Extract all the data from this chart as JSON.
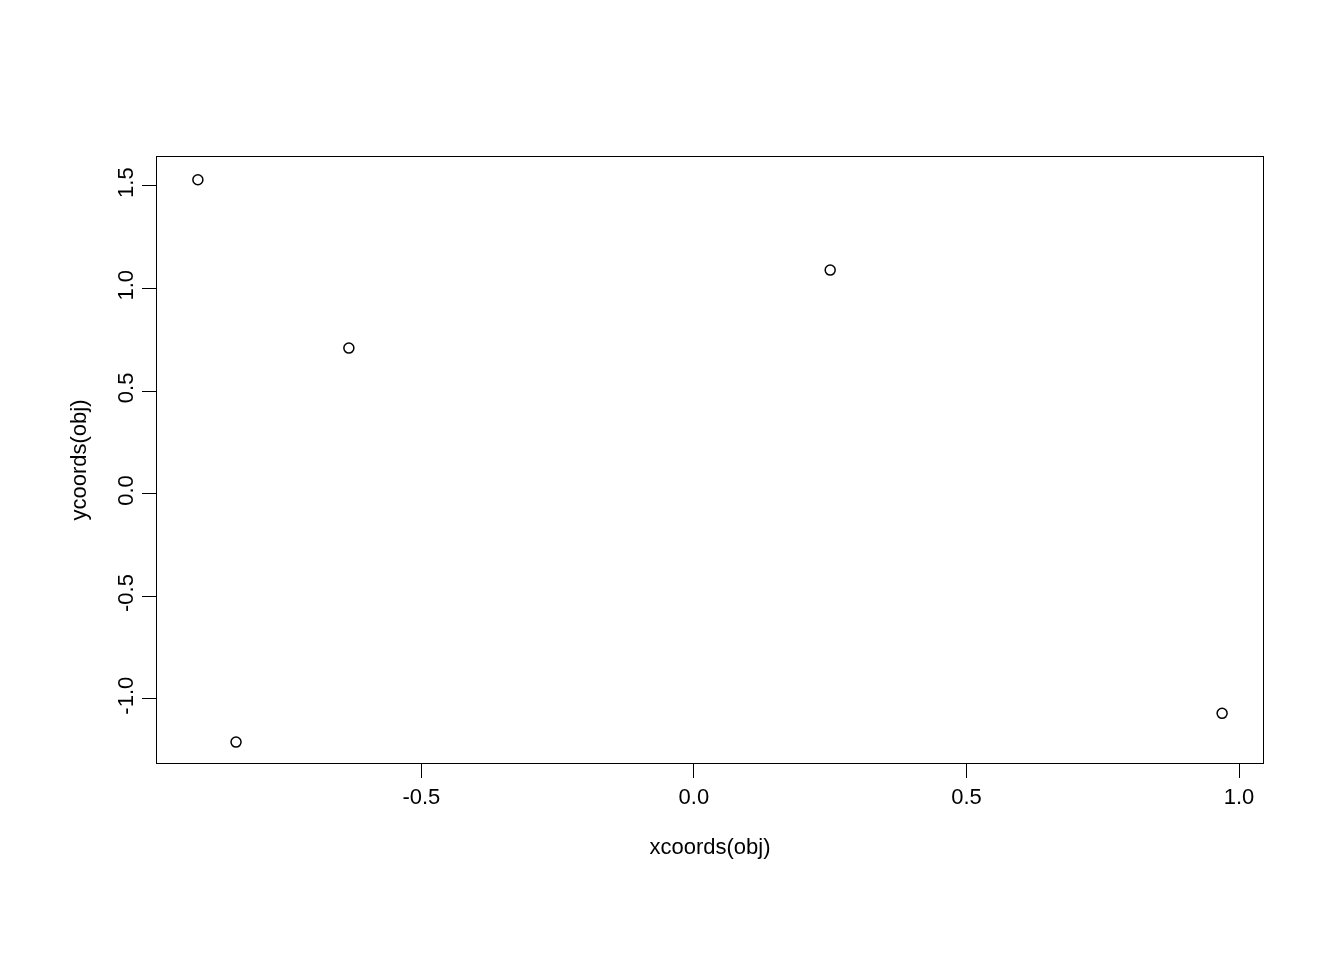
{
  "chart_data": {
    "type": "scatter",
    "xlabel": "xcoords(obj)",
    "ylabel": "ycoords(obj)",
    "x": [
      -0.91,
      -0.84,
      -0.633,
      0.25,
      0.969
    ],
    "series": [
      {
        "color": "#000000",
        "values": [
          1.53,
          -1.21,
          0.71,
          1.09,
          -1.07
        ]
      }
    ],
    "marker": "circle",
    "xlim": [
      -0.985,
      1.044
    ],
    "ylim": [
      -1.312,
      1.641
    ],
    "xticks": [
      -0.5,
      {
        "value": 0,
        "label": "0.0"
      },
      0.5,
      {
        "value": 1,
        "label": "1.0"
      }
    ],
    "yticks": [
      {
        "value": -1,
        "label": "-1.0"
      },
      -0.5,
      {
        "value": 0,
        "label": "0.0"
      },
      0.5,
      {
        "value": 1,
        "label": "1.0"
      },
      1.5
    ]
  }
}
